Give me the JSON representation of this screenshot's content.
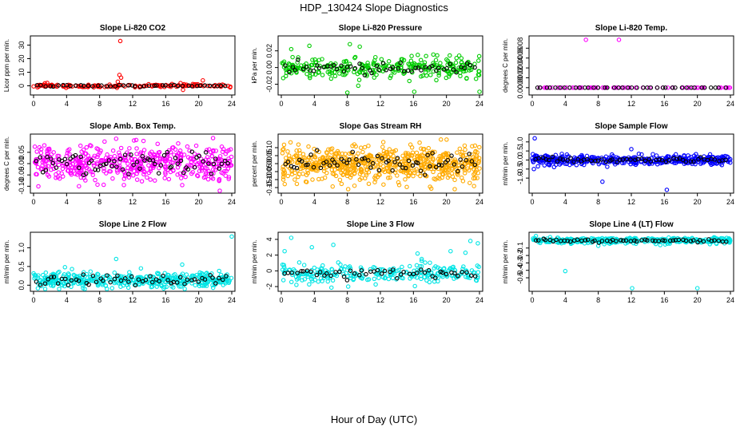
{
  "figure": {
    "title": "HDP_130424  Slope Diagnostics",
    "xlabel": "Hour of Day (UTC)"
  },
  "chart_data": [
    {
      "type": "scatter",
      "title": "Slope Li-820 CO2",
      "ylabel": "Licor ppm per min.",
      "color": "#ff0000",
      "xlim": [
        0,
        24
      ],
      "ylim": [
        -5,
        35
      ],
      "xticks": [
        "0",
        "4",
        "8",
        "12",
        "16",
        "20",
        "24"
      ],
      "yticks": [
        {
          "v": 0,
          "label": "0"
        },
        {
          "v": 10,
          "label": "10"
        },
        {
          "v": 20,
          "label": "20"
        },
        {
          "v": 30,
          "label": "30"
        }
      ],
      "seed": 11,
      "base": 0,
      "spread": 0.6,
      "n": 140,
      "black_n": 45,
      "outliers": [
        [
          10.5,
          33
        ],
        [
          10.4,
          8
        ],
        [
          10.6,
          6
        ],
        [
          10.2,
          3
        ],
        [
          17.8,
          2
        ],
        [
          18.1,
          -3
        ],
        [
          20.5,
          4
        ],
        [
          19.7,
          1
        ],
        [
          22.0,
          0.5
        ]
      ]
    },
    {
      "type": "scatter",
      "title": "Slope Li-820 Pressure",
      "ylabel": "kPa per min.",
      "color": "#00cc00",
      "xlim": [
        0,
        24
      ],
      "ylim": [
        -0.03,
        0.035
      ],
      "xticks": [
        "0",
        "4",
        "8",
        "12",
        "16",
        "20",
        "24"
      ],
      "yticks": [
        {
          "v": -0.02,
          "label": "-0.02"
        },
        {
          "v": 0,
          "label": "0.00"
        },
        {
          "v": 0.02,
          "label": "0.02"
        }
      ],
      "seed": 23,
      "base": 0,
      "spread": 0.006,
      "n": 300,
      "black_n": 55,
      "outliers": [
        [
          8.0,
          -0.03
        ],
        [
          16.1,
          -0.029
        ],
        [
          24.0,
          -0.029
        ],
        [
          8.3,
          0.028
        ],
        [
          9.5,
          0.025
        ],
        [
          3.4,
          0.026
        ],
        [
          1.2,
          0.022
        ]
      ]
    },
    {
      "type": "scatter",
      "title": "Slope Li-820 Temp.",
      "ylabel": "degrees C per min.",
      "color": "#ff00ff",
      "xlim": [
        0,
        24
      ],
      "ylim": [
        -0.0001,
        0.001
      ],
      "xticks": [
        "0",
        "4",
        "8",
        "12",
        "16",
        "20",
        "24"
      ],
      "yticks": [
        {
          "v": 0,
          "label": "0.0000"
        },
        {
          "v": 0.0002,
          "label": "0.0002"
        },
        {
          "v": 0.0004,
          "label": "0.0004"
        },
        {
          "v": 0.0006,
          "label": "0.0006"
        },
        {
          "v": 0.0008,
          "label": "0.0008"
        }
      ],
      "seed": 37,
      "base": 0,
      "spread": 0,
      "n": 70,
      "black_n": 40,
      "outliers": [
        [
          6.5,
          0.00097
        ],
        [
          10.5,
          0.00097
        ]
      ]
    },
    {
      "type": "scatter",
      "title": "Slope Amb. Box Temp.",
      "ylabel": "degrees C per min.",
      "color": "#ff00ff",
      "xlim": [
        0,
        24
      ],
      "ylim": [
        -0.12,
        0.12
      ],
      "xticks": [
        "0",
        "4",
        "8",
        "12",
        "16",
        "20",
        "24"
      ],
      "yticks": [
        {
          "v": -0.1,
          "label": "-0.10"
        },
        {
          "v": -0.05,
          "label": "-0.05"
        },
        {
          "v": 0,
          "label": "0.00"
        },
        {
          "v": 0.05,
          "label": "0.05"
        }
      ],
      "seed": 41,
      "base": 0,
      "spread": 0.04,
      "n": 480,
      "black_n": 70,
      "outliers": [
        [
          10.0,
          0.11
        ],
        [
          5.5,
          -0.1
        ],
        [
          18.0,
          -0.095
        ]
      ]
    },
    {
      "type": "scatter",
      "title": "Slope Gas Stream RH",
      "ylabel": "percent per min.",
      "color": "#ffaa00",
      "xlim": [
        0,
        24
      ],
      "ylim": [
        -0.17,
        0.17
      ],
      "xticks": [
        "0",
        "4",
        "8",
        "12",
        "16",
        "20",
        "24"
      ],
      "yticks": [
        {
          "v": -0.15,
          "label": "-0.15"
        },
        {
          "v": -0.1,
          "label": "-0.10"
        },
        {
          "v": -0.05,
          "label": "-0.05"
        },
        {
          "v": 0,
          "label": "0.00"
        },
        {
          "v": 0.05,
          "label": "0.05"
        },
        {
          "v": 0.1,
          "label": "0.10"
        }
      ],
      "seed": 53,
      "base": 0,
      "spread": 0.055,
      "n": 650,
      "black_n": 65,
      "outliers": [
        [
          8.1,
          -0.16
        ],
        [
          21.0,
          -0.16
        ]
      ]
    },
    {
      "type": "scatter",
      "title": "Slope Sample Flow",
      "ylabel": "ml/min per min.",
      "color": "#0000ff",
      "xlim": [
        0,
        24
      ],
      "ylim": [
        -1.7,
        1.3
      ],
      "xticks": [
        "0",
        "4",
        "8",
        "12",
        "16",
        "20",
        "24"
      ],
      "yticks": [
        {
          "v": -1,
          "label": "-1.0"
        },
        {
          "v": -0.5,
          "label": "-0.5"
        },
        {
          "v": 0,
          "label": "0.0"
        },
        {
          "v": 0.5,
          "label": "0.5"
        },
        {
          "v": 1,
          "label": "1.0"
        }
      ],
      "seed": 67,
      "base": 0,
      "spread": 0.12,
      "n": 420,
      "black_n": 55,
      "outliers": [
        [
          0.3,
          1.2
        ],
        [
          16.3,
          -1.65
        ],
        [
          8.5,
          -1.2
        ],
        [
          12.0,
          0.6
        ],
        [
          4.2,
          0.3
        ],
        [
          0.2,
          -0.5
        ]
      ]
    },
    {
      "type": "scatter",
      "title": "Slope Line 2 Flow",
      "ylabel": "ml/min per min.",
      "color": "#00e5e5",
      "xlim": [
        0,
        24
      ],
      "ylim": [
        -0.1,
        1.35
      ],
      "xticks": [
        "0",
        "4",
        "8",
        "12",
        "16",
        "20",
        "24"
      ],
      "yticks": [
        {
          "v": 0,
          "label": "0.0"
        },
        {
          "v": 0.5,
          "label": "0.5"
        },
        {
          "v": 1,
          "label": "1.0"
        }
      ],
      "seed": 71,
      "base": 0.14,
      "spread": 0.1,
      "n": 420,
      "black_n": 55,
      "outliers": [
        [
          24.0,
          1.3
        ],
        [
          10.0,
          0.7
        ],
        [
          18.0,
          0.55
        ],
        [
          3.8,
          0.48
        ],
        [
          13.0,
          0.45
        ]
      ]
    },
    {
      "type": "scatter",
      "title": "Slope Line 3 Flow",
      "ylabel": "ml/min per min.",
      "color": "#00e5e5",
      "xlim": [
        0,
        24
      ],
      "ylim": [
        -2.3,
        4.6
      ],
      "xticks": [
        "0",
        "4",
        "8",
        "12",
        "16",
        "20",
        "24"
      ],
      "yticks": [
        {
          "v": -2,
          "label": "-2"
        },
        {
          "v": 0,
          "label": "0"
        },
        {
          "v": 2,
          "label": "2"
        },
        {
          "v": 4,
          "label": "4"
        }
      ],
      "seed": 83,
      "base": -0.3,
      "spread": 0.55,
      "n": 260,
      "black_n": 50,
      "outliers": [
        [
          1.2,
          4.2
        ],
        [
          6.3,
          3.3
        ],
        [
          3.7,
          3.0
        ],
        [
          0.4,
          2.5
        ],
        [
          22.9,
          3.8
        ],
        [
          23.8,
          3.5
        ],
        [
          20.5,
          2.5
        ],
        [
          22.3,
          2.3
        ],
        [
          8.1,
          -2.0
        ],
        [
          16.5,
          2.2
        ],
        [
          17.0,
          1.5
        ]
      ]
    },
    {
      "type": "scatter",
      "title": "Slope Line 4 (LT) Flow",
      "ylabel": "ml/min per min.",
      "color": "#00e5e5",
      "xlim": [
        0,
        24
      ],
      "ylim": [
        -0.65,
        0.08
      ],
      "xticks": [
        "0",
        "4",
        "8",
        "12",
        "16",
        "20",
        "24"
      ],
      "yticks": [
        {
          "v": -0.5,
          "label": "-0.5"
        },
        {
          "v": -0.4,
          "label": "-0.4"
        },
        {
          "v": -0.3,
          "label": "-0.3"
        },
        {
          "v": -0.2,
          "label": "-0.2"
        },
        {
          "v": -0.1,
          "label": "-0.1"
        }
      ],
      "seed": 97,
      "base": 0,
      "spread": 0.02,
      "n": 380,
      "black_n": 55,
      "outliers": [
        [
          4.0,
          -0.41
        ],
        [
          12.1,
          -0.64
        ],
        [
          20.0,
          -0.64
        ],
        [
          8.0,
          -0.07
        ],
        [
          15.5,
          -0.06
        ]
      ]
    }
  ]
}
